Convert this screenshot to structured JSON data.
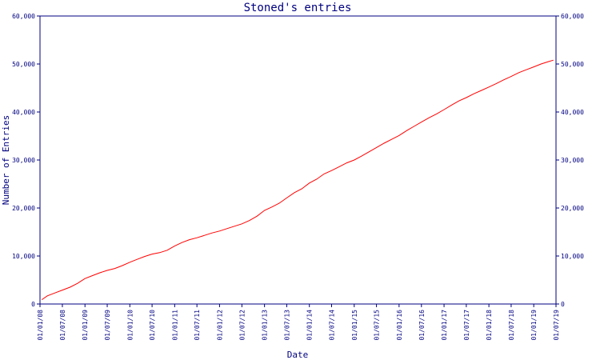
{
  "chart_data": {
    "type": "line",
    "title": "Stoned's entries",
    "xlabel": "Date",
    "ylabel": "Number of Entries",
    "ylim": [
      0,
      60000
    ],
    "y_ticks": [
      "0",
      "10,000",
      "20,000",
      "30,000",
      "40,000",
      "50,000",
      "60,000"
    ],
    "y_tick_values": [
      0,
      10000,
      20000,
      30000,
      40000,
      50000,
      60000
    ],
    "x_ticks": [
      "01/01/08",
      "01/07/08",
      "01/01/09",
      "01/07/09",
      "01/01/10",
      "01/07/10",
      "01/01/11",
      "01/07/11",
      "01/01/12",
      "01/07/12",
      "01/01/13",
      "01/07/13",
      "01/01/14",
      "01/07/14",
      "01/01/15",
      "01/07/15",
      "01/01/16",
      "01/07/16",
      "01/01/17",
      "01/07/17",
      "01/01/18",
      "01/07/18",
      "01/01/19",
      "01/07/19"
    ],
    "xlim": [
      "2008-01-01",
      "2019-07-01"
    ],
    "grid": false,
    "line_color": "#ff0000",
    "axis_color": "#000080",
    "series": [
      {
        "points": [
          [
            "2008-01-15",
            900
          ],
          [
            "2008-03-01",
            1700
          ],
          [
            "2008-05-01",
            2300
          ],
          [
            "2008-07-01",
            2900
          ],
          [
            "2008-09-01",
            3500
          ],
          [
            "2008-11-01",
            4300
          ],
          [
            "2009-01-01",
            5300
          ],
          [
            "2009-03-01",
            5900
          ],
          [
            "2009-05-01",
            6500
          ],
          [
            "2009-07-01",
            7000
          ],
          [
            "2009-09-01",
            7400
          ],
          [
            "2009-11-01",
            8000
          ],
          [
            "2010-01-01",
            8700
          ],
          [
            "2010-03-01",
            9300
          ],
          [
            "2010-05-01",
            9900
          ],
          [
            "2010-07-01",
            10400
          ],
          [
            "2010-09-01",
            10700
          ],
          [
            "2010-11-01",
            11200
          ],
          [
            "2011-01-01",
            12100
          ],
          [
            "2011-03-01",
            12800
          ],
          [
            "2011-05-01",
            13400
          ],
          [
            "2011-07-01",
            13800
          ],
          [
            "2011-09-01",
            14300
          ],
          [
            "2011-11-01",
            14800
          ],
          [
            "2012-01-01",
            15200
          ],
          [
            "2012-03-01",
            15700
          ],
          [
            "2012-05-01",
            16200
          ],
          [
            "2012-07-01",
            16700
          ],
          [
            "2012-09-01",
            17400
          ],
          [
            "2012-11-01",
            18300
          ],
          [
            "2013-01-01",
            19500
          ],
          [
            "2013-03-01",
            20200
          ],
          [
            "2013-05-01",
            21000
          ],
          [
            "2013-07-01",
            22100
          ],
          [
            "2013-09-01",
            23200
          ],
          [
            "2013-11-01",
            24000
          ],
          [
            "2014-01-01",
            25200
          ],
          [
            "2014-03-01",
            26000
          ],
          [
            "2014-05-01",
            27100
          ],
          [
            "2014-07-01",
            27800
          ],
          [
            "2014-09-01",
            28600
          ],
          [
            "2014-11-01",
            29400
          ],
          [
            "2015-01-01",
            30000
          ],
          [
            "2015-03-01",
            30800
          ],
          [
            "2015-05-01",
            31700
          ],
          [
            "2015-07-01",
            32600
          ],
          [
            "2015-09-01",
            33500
          ],
          [
            "2015-11-01",
            34300
          ],
          [
            "2016-01-01",
            35100
          ],
          [
            "2016-03-01",
            36100
          ],
          [
            "2016-05-01",
            37000
          ],
          [
            "2016-07-01",
            37900
          ],
          [
            "2016-09-01",
            38800
          ],
          [
            "2016-11-01",
            39600
          ],
          [
            "2017-01-01",
            40500
          ],
          [
            "2017-03-01",
            41400
          ],
          [
            "2017-05-01",
            42300
          ],
          [
            "2017-07-01",
            43000
          ],
          [
            "2017-09-01",
            43800
          ],
          [
            "2017-11-01",
            44500
          ],
          [
            "2018-01-01",
            45200
          ],
          [
            "2018-03-01",
            45900
          ],
          [
            "2018-05-01",
            46700
          ],
          [
            "2018-07-01",
            47400
          ],
          [
            "2018-09-01",
            48200
          ],
          [
            "2018-11-01",
            48800
          ],
          [
            "2019-01-01",
            49400
          ],
          [
            "2019-03-01",
            50000
          ],
          [
            "2019-05-01",
            50500
          ],
          [
            "2019-06-10",
            50800
          ]
        ]
      }
    ]
  }
}
